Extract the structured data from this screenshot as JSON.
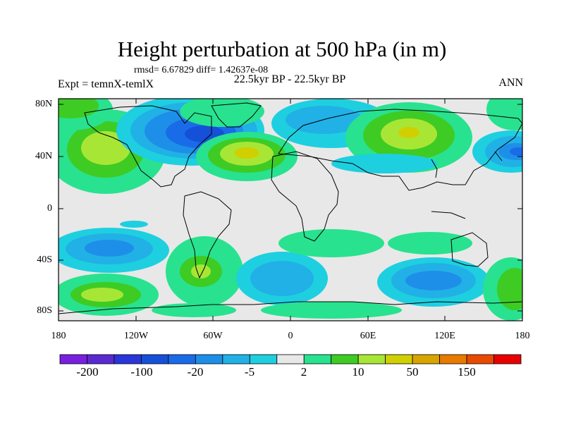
{
  "title": "Height perturbation at 500 hPa (in m)",
  "stats": "rmsd= 6.67829 diff= 1.42637e-08",
  "subtitle": "22.5kyr BP - 22.5kyr BP",
  "experiment": "Expt = temnX-temlX",
  "season": "ANN",
  "axes": {
    "y_ticks": [
      "80N",
      "40N",
      "0",
      "40S",
      "80S"
    ],
    "x_ticks": [
      "180",
      "120W",
      "60W",
      "0",
      "60E",
      "120E",
      "180"
    ]
  },
  "colorbar": {
    "colors": [
      "#7a1fe0",
      "#5a2ad0",
      "#2a36d8",
      "#1550d8",
      "#1a6be8",
      "#1e8fe8",
      "#21b1e6",
      "#1ecfe0",
      "#e8e8e8",
      "#28e28f",
      "#3ecb24",
      "#a8e636",
      "#d0d000",
      "#d8a400",
      "#e87a00",
      "#e84a00",
      "#e80000"
    ],
    "labels": [
      "-200",
      "-100",
      "-20",
      "-5",
      "2",
      "10",
      "50",
      "150"
    ]
  },
  "colors": {
    "neutral": "#e8e8e8",
    "coastline": "#000000"
  }
}
